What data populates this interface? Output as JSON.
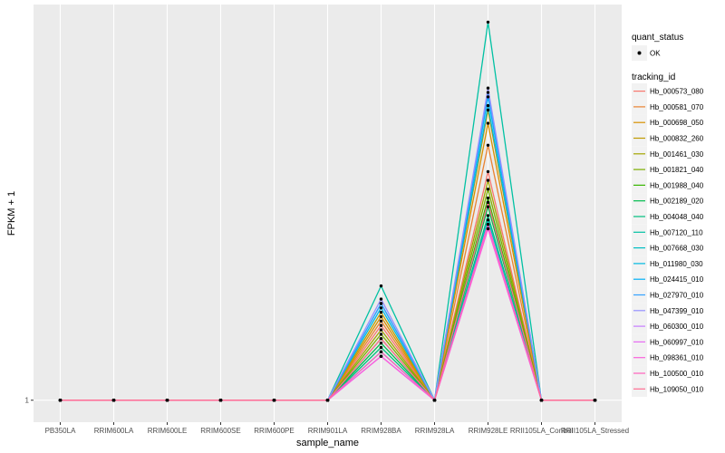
{
  "chart_data": {
    "type": "line",
    "xlabel": "sample_name",
    "ylabel": "FPKM + 1",
    "y_tick_labels": [
      "1"
    ],
    "categories": [
      "PB350LA",
      "RRIM600LA",
      "RRIM600LE",
      "RRIM600SE",
      "RRIM600PE",
      "RRIM901LA",
      "RRIM928BA",
      "RRIM928LA",
      "RRIM928LE",
      "RRII105LA_Control",
      "RRII105LA_Stressed"
    ],
    "ylim": [
      0.95,
      1.9
    ],
    "grid": true,
    "legend_position": "right",
    "point_legend": {
      "title": "quant_status",
      "entries": [
        {
          "label": "OK"
        }
      ]
    },
    "line_legend_title": "tracking_id",
    "series": [
      {
        "name": "Hb_000573_080",
        "color": "#F8766D",
        "values": [
          1,
          1,
          1,
          1,
          1,
          1,
          1.17,
          1,
          1.52,
          1,
          1
        ]
      },
      {
        "name": "Hb_000581_070",
        "color": "#EA8331",
        "values": [
          1,
          1,
          1,
          1,
          1,
          1,
          1.18,
          1,
          1.58,
          1,
          1
        ]
      },
      {
        "name": "Hb_000698_050",
        "color": "#D89000",
        "values": [
          1,
          1,
          1,
          1,
          1,
          1,
          1.19,
          1,
          1.63,
          1,
          1
        ]
      },
      {
        "name": "Hb_000832_260",
        "color": "#C09B00",
        "values": [
          1,
          1,
          1,
          1,
          1,
          1,
          1.2,
          1,
          1.66,
          1,
          1
        ]
      },
      {
        "name": "Hb_001461_030",
        "color": "#A3A500",
        "values": [
          1,
          1,
          1,
          1,
          1,
          1,
          1.16,
          1,
          1.5,
          1,
          1
        ]
      },
      {
        "name": "Hb_001821_040",
        "color": "#7CAE00",
        "values": [
          1,
          1,
          1,
          1,
          1,
          1,
          1.15,
          1,
          1.48,
          1,
          1
        ]
      },
      {
        "name": "Hb_001988_040",
        "color": "#39B600",
        "values": [
          1,
          1,
          1,
          1,
          1,
          1,
          1.14,
          1,
          1.46,
          1,
          1
        ]
      },
      {
        "name": "Hb_002189_020",
        "color": "#00BB4E",
        "values": [
          1,
          1,
          1,
          1,
          1,
          1,
          1.13,
          1,
          1.44,
          1,
          1
        ]
      },
      {
        "name": "Hb_004048_040",
        "color": "#00BF7D",
        "values": [
          1,
          1,
          1,
          1,
          1,
          1,
          1.12,
          1,
          1.42,
          1,
          1
        ]
      },
      {
        "name": "Hb_007120_110",
        "color": "#00C1A3",
        "values": [
          1,
          1,
          1,
          1,
          1,
          1,
          1.26,
          1,
          1.86,
          1,
          1
        ]
      },
      {
        "name": "Hb_007668_030",
        "color": "#00BFC4",
        "values": [
          1,
          1,
          1,
          1,
          1,
          1,
          1.11,
          1,
          1.41,
          1,
          1
        ]
      },
      {
        "name": "Hb_011980_030",
        "color": "#00BAE0",
        "values": [
          1,
          1,
          1,
          1,
          1,
          1,
          1.21,
          1,
          1.67,
          1,
          1
        ]
      },
      {
        "name": "Hb_024415_010",
        "color": "#00B0F6",
        "values": [
          1,
          1,
          1,
          1,
          1,
          1,
          1.22,
          1,
          1.69,
          1,
          1
        ]
      },
      {
        "name": "Hb_027970_010",
        "color": "#35A2FF",
        "values": [
          1,
          1,
          1,
          1,
          1,
          1,
          1.22,
          1,
          1.7,
          1,
          1
        ]
      },
      {
        "name": "Hb_047399_010",
        "color": "#9590FF",
        "values": [
          1,
          1,
          1,
          1,
          1,
          1,
          1.23,
          1,
          1.71,
          1,
          1
        ]
      },
      {
        "name": "Hb_060300_010",
        "color": "#C77CFF",
        "values": [
          1,
          1,
          1,
          1,
          1,
          1,
          1.1,
          1,
          1.4,
          1,
          1
        ]
      },
      {
        "name": "Hb_060997_010",
        "color": "#E76BF3",
        "values": [
          1,
          1,
          1,
          1,
          1,
          1,
          1.1,
          1,
          1.39,
          1,
          1
        ]
      },
      {
        "name": "Hb_098361_010",
        "color": "#FA62DB",
        "values": [
          1,
          1,
          1,
          1,
          1,
          1,
          1.1,
          1,
          1.39,
          1,
          1
        ]
      },
      {
        "name": "Hb_100500_010",
        "color": "#FF62BC",
        "values": [
          1,
          1,
          1,
          1,
          1,
          1,
          1.11,
          1,
          1.4,
          1,
          1
        ]
      },
      {
        "name": "Hb_109050_010",
        "color": "#FF6C91",
        "values": [
          1,
          1,
          1,
          1,
          1,
          1,
          1.14,
          1,
          1.45,
          1,
          1
        ]
      }
    ]
  },
  "colors": {
    "panel": "#EBEBEB",
    "grid": "#FFFFFF",
    "point": "#000000",
    "legend_key_bg": "#F2F2F2"
  }
}
